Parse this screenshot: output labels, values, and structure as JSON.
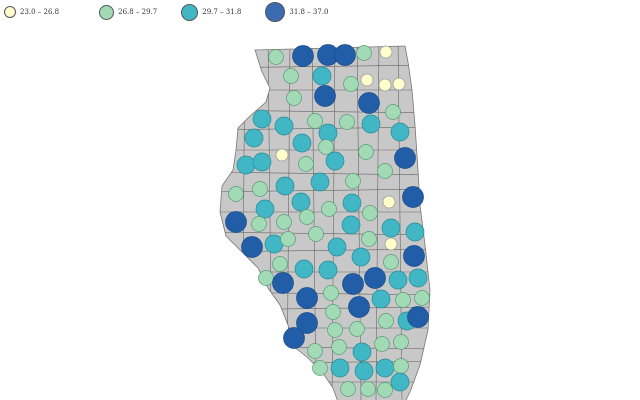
{
  "legend": [
    {
      "label": "23.0 – 26.8",
      "color": "#ffffcc"
    },
    {
      "label": "26.8 – 29.7",
      "color": "#a1dab4"
    },
    {
      "label": "29.7 – 31.8",
      "color": "#41b6c4"
    },
    {
      "label": "31.8 – 37.0",
      "color": "#225ea8"
    }
  ],
  "map": {
    "fill": "#c8c8c8",
    "border": "#555555",
    "county_classes": [
      1,
      3,
      3,
      3,
      1,
      0,
      1,
      2,
      1,
      0,
      0,
      0,
      1,
      3,
      3,
      1,
      2,
      2,
      1,
      1,
      2,
      2,
      2,
      2,
      2,
      1,
      0,
      2,
      1,
      3,
      2,
      2,
      1,
      1,
      2,
      2,
      1,
      3,
      1,
      1,
      2,
      2,
      0,
      1,
      2,
      3,
      1,
      1,
      1,
      1,
      2,
      2,
      2,
      3,
      2,
      1,
      1,
      2,
      1,
      0,
      2,
      3,
      1,
      2,
      2,
      1,
      1,
      3,
      3,
      3,
      2,
      2,
      3,
      1,
      3,
      2,
      1,
      1,
      1,
      1,
      2,
      3,
      3,
      1,
      1,
      3,
      1,
      1,
      2,
      1,
      1,
      2,
      2,
      2,
      1,
      1,
      1,
      1,
      1,
      2
    ]
  }
}
